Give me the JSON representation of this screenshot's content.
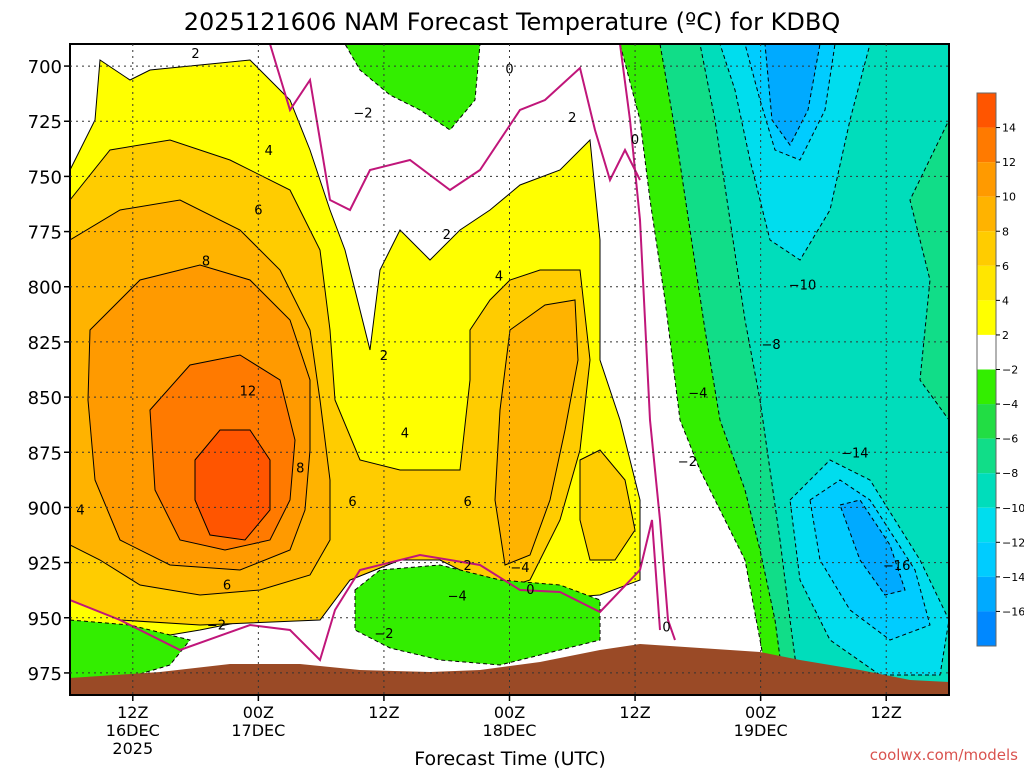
{
  "chart_data": {
    "type": "heatmap",
    "title": "2025121606 NAM Forecast Temperature (ºC) for KDBQ",
    "xlabel": "Forecast Time (UTC)",
    "ylabel": "",
    "credit": "coolwx.com/models",
    "y_axis": {
      "range": [
        690,
        985
      ],
      "ticks": [
        "700",
        "725",
        "750",
        "775",
        "800",
        "825",
        "850",
        "875",
        "900",
        "925",
        "950",
        "975"
      ],
      "reversed": true,
      "unit": "hPa"
    },
    "x_axis": {
      "range_hours": [
        0,
        84
      ],
      "ticks": [
        {
          "hour": 6,
          "line1": "12Z",
          "line2": "16DEC",
          "line3": "2025"
        },
        {
          "hour": 18,
          "line1": "00Z",
          "line2": "17DEC",
          "line3": ""
        },
        {
          "hour": 30,
          "line1": "12Z",
          "line2": "",
          "line3": ""
        },
        {
          "hour": 42,
          "line1": "00Z",
          "line2": "18DEC",
          "line3": ""
        },
        {
          "hour": 54,
          "line1": "12Z",
          "line2": "",
          "line3": ""
        },
        {
          "hour": 66,
          "line1": "00Z",
          "line2": "19DEC",
          "line3": ""
        },
        {
          "hour": 78,
          "line1": "12Z",
          "line2": "",
          "line3": ""
        }
      ]
    },
    "grid": true,
    "colorbar": {
      "placement": "right",
      "levels": [
        "14",
        "12",
        "10",
        "8",
        "6",
        "4",
        "2",
        "−2",
        "−4",
        "−6",
        "−8",
        "−10",
        "−12",
        "−14",
        "−16"
      ],
      "colors": [
        "#ff5500",
        "#ff7a00",
        "#ff9a00",
        "#ffb300",
        "#ffcc00",
        "#ffe600",
        "#ffff00",
        "#ffffff",
        "#33ee00",
        "#22dd44",
        "#11dd88",
        "#00ddbb",
        "#00ddee",
        "#00ccff",
        "#00aaff",
        "#0088ff"
      ]
    },
    "contour_labels": [
      {
        "text": "2",
        "hour": 12,
        "p": 694
      },
      {
        "text": "4",
        "hour": 19,
        "p": 738
      },
      {
        "text": "6",
        "hour": 18,
        "p": 765
      },
      {
        "text": "8",
        "hour": 13,
        "p": 788
      },
      {
        "text": "12",
        "hour": 17,
        "p": 847
      },
      {
        "text": "8",
        "hour": 22,
        "p": 882
      },
      {
        "text": "6",
        "hour": 27,
        "p": 897
      },
      {
        "text": "6",
        "hour": 15,
        "p": 935
      },
      {
        "text": "4",
        "hour": 1,
        "p": 901
      },
      {
        "text": "−2",
        "hour": 14,
        "p": 953
      },
      {
        "text": "−2",
        "hour": 28,
        "p": 721
      },
      {
        "text": "0",
        "hour": 42,
        "p": 701
      },
      {
        "text": "2",
        "hour": 36,
        "p": 776
      },
      {
        "text": "2",
        "hour": 30,
        "p": 831
      },
      {
        "text": "4",
        "hour": 32,
        "p": 866
      },
      {
        "text": "6",
        "hour": 38,
        "p": 897
      },
      {
        "text": "4",
        "hour": 41,
        "p": 795
      },
      {
        "text": "2",
        "hour": 48,
        "p": 723
      },
      {
        "text": "0",
        "hour": 54,
        "p": 733
      },
      {
        "text": "−2",
        "hour": 30,
        "p": 957
      },
      {
        "text": "−4",
        "hour": 37,
        "p": 940
      },
      {
        "text": "2",
        "hour": 38,
        "p": 926
      },
      {
        "text": "−4",
        "hour": 43,
        "p": 927
      },
      {
        "text": "0",
        "hour": 44,
        "p": 937
      },
      {
        "text": "0",
        "hour": 57,
        "p": 954
      },
      {
        "text": "−4",
        "hour": 60,
        "p": 848
      },
      {
        "text": "−2",
        "hour": 59,
        "p": 879
      },
      {
        "text": "−8",
        "hour": 67,
        "p": 826
      },
      {
        "text": "−10",
        "hour": 70,
        "p": 799
      },
      {
        "text": "−14",
        "hour": 75,
        "p": 875
      },
      {
        "text": "−16",
        "hour": 79,
        "p": 926
      }
    ]
  }
}
